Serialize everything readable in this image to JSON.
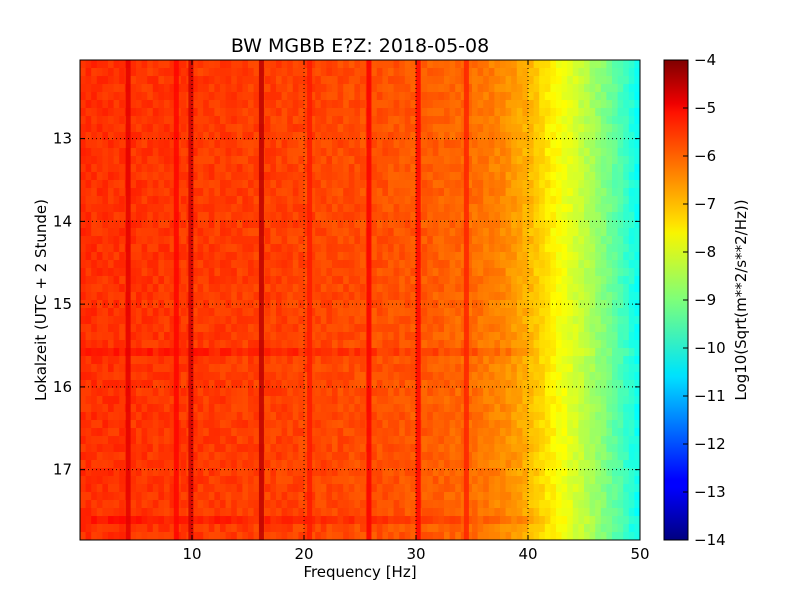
{
  "chart_data": {
    "type": "heatmap",
    "title": "BW MGBB E?Z: 2018-05-08",
    "xlabel": "Frequency [Hz]",
    "ylabel": "Lokalzeit (UTC + 2 Stunde)",
    "xlim": [
      0,
      50
    ],
    "ylim": [
      12.05,
      17.85
    ],
    "x_ticks": [
      10,
      20,
      30,
      40,
      50
    ],
    "y_ticks": [
      13,
      14,
      15,
      16,
      17
    ],
    "y_inverted": true,
    "grid": true,
    "colormap": "jet",
    "colorbar": {
      "label": "Log10(Sqrt(m**2/s**2/Hz))",
      "range": [
        -14,
        -4
      ],
      "ticks": [
        -4,
        -5,
        -6,
        -7,
        -8,
        -9,
        -10,
        -11,
        -12,
        -13,
        -14
      ],
      "position": "right"
    },
    "spectral_profile": [
      {
        "hz": 0,
        "value": -5.7
      },
      {
        "hz": 20,
        "value": -5.9
      },
      {
        "hz": 30,
        "value": -6.1
      },
      {
        "hz": 35,
        "value": -6.3
      },
      {
        "hz": 38,
        "value": -6.6
      },
      {
        "hz": 40,
        "value": -7.0
      },
      {
        "hz": 42,
        "value": -7.6
      },
      {
        "hz": 44,
        "value": -8.1
      },
      {
        "hz": 46,
        "value": -8.7
      },
      {
        "hz": 48,
        "value": -9.4
      },
      {
        "hz": 50,
        "value": -10.2
      }
    ],
    "spectral_lines": [
      {
        "hz": 4.3,
        "value": -5.0
      },
      {
        "hz": 8.6,
        "value": -5.3
      },
      {
        "hz": 9.9,
        "value": -4.8
      },
      {
        "hz": 16.2,
        "value": -4.6
      },
      {
        "hz": 20.5,
        "value": -5.5
      },
      {
        "hz": 25.8,
        "value": -5.2
      },
      {
        "hz": 30.2,
        "value": -5.3
      },
      {
        "hz": 34.5,
        "value": -5.6
      }
    ]
  }
}
